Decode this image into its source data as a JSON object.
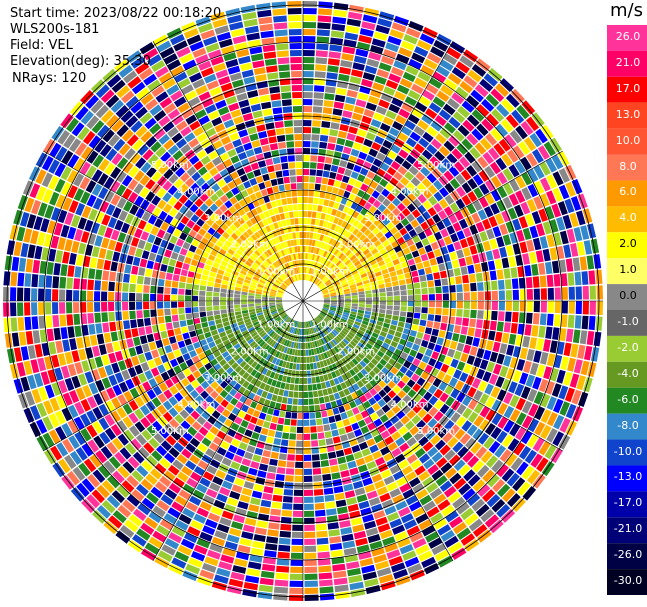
{
  "info": {
    "start_time": "Start time: 2023/08/22 00:18:20",
    "device": "WLS200s-181",
    "field": "Field: VEL",
    "elevation": "Elevation(deg): 35.30",
    "nrays": "NRays: 120"
  },
  "colorbar": {
    "unit": "m/s",
    "labels": [
      "26.0",
      "21.0",
      "17.0",
      "13.0",
      "10.0",
      "8.0",
      "6.0",
      "4.0",
      "2.0",
      "1.0",
      "0.0",
      "-1.0",
      "-2.0",
      "-4.0",
      "-6.0",
      "-8.0",
      "-10.0",
      "-13.0",
      "-17.0",
      "-21.0",
      "-26.0",
      "-30.0"
    ],
    "colors": [
      "#ff3399",
      "#ff0066",
      "#ff0000",
      "#ff4422",
      "#ff5533",
      "#ff7755",
      "#ff9900",
      "#ffbb00",
      "#ffff00",
      "#ffff66",
      "#888888",
      "#666666",
      "#99cc33",
      "#669922",
      "#228822",
      "#3388cc",
      "#1144cc",
      "#0000ff",
      "#0000aa",
      "#000077",
      "#000044",
      "#000022"
    ]
  },
  "range_rings": {
    "labels": [
      "1.00km",
      "2.00km",
      "3.00km",
      "4.00km",
      "5.00km"
    ]
  },
  "chart_data": {
    "type": "heatmap",
    "title": "",
    "field": "VEL",
    "units": "m/s",
    "elevation_deg": 35.3,
    "nrays": 120,
    "range_rings_km": [
      1,
      2,
      3,
      4,
      5
    ],
    "clim": [
      -30,
      26
    ],
    "description_of_field": "near range: positive (yellow/orange) to north, negative (green/blue) to south; beyond ~3 km values are noisy"
  }
}
